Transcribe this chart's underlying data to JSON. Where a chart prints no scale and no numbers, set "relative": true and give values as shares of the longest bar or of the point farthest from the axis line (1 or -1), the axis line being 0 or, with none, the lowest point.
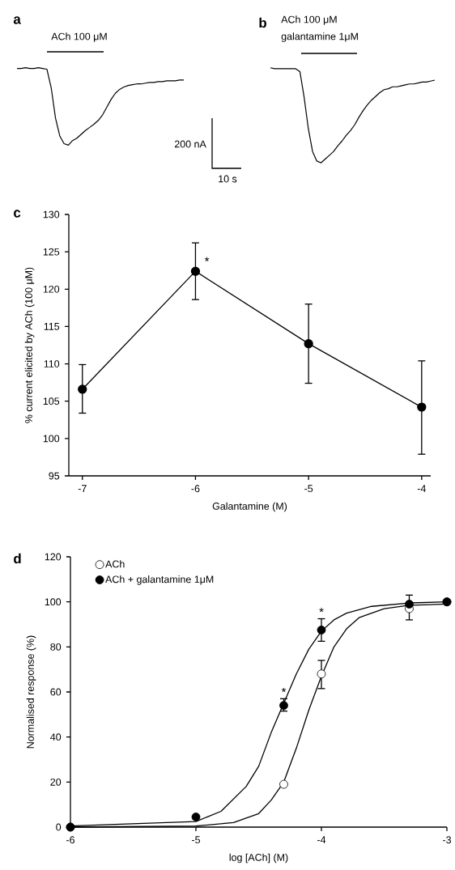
{
  "chart_data": [
    {
      "type": "line",
      "title": "a",
      "relative": true,
      "categories": [
        null,
        null,
        null,
        null,
        null,
        null,
        null,
        null,
        null,
        null,
        null,
        null,
        null,
        null,
        null,
        null,
        null,
        null,
        null,
        null,
        null,
        null,
        null,
        null,
        null,
        null,
        null,
        null,
        null,
        null,
        null,
        null,
        null,
        null,
        null,
        null,
        null,
        null,
        null,
        null
      ],
      "series": [
        {
          "color": "#000000",
          "values": [
            0.99,
            0.99,
            1.0,
            0.99,
            0.99,
            1.0,
            0.99,
            0.98,
            0.74,
            0.35,
            0.12,
            0.02,
            0.0,
            0.06,
            0.09,
            0.14,
            0.19,
            0.23,
            0.27,
            0.32,
            0.39,
            0.49,
            0.59,
            0.67,
            0.72,
            0.75,
            0.77,
            0.78,
            0.79,
            0.79,
            0.8,
            0.81,
            0.81,
            0.82,
            0.82,
            0.83,
            0.83,
            0.83,
            0.84,
            0.84
          ]
        }
      ],
      "annotations": [
        "ACh 100 μM",
        "200 nA",
        "10 s"
      ]
    },
    {
      "type": "line",
      "title": "b",
      "relative": true,
      "categories": [
        null,
        null,
        null,
        null,
        null,
        null,
        null,
        null,
        null,
        null,
        null,
        null,
        null,
        null,
        null,
        null,
        null,
        null,
        null,
        null,
        null,
        null,
        null,
        null,
        null,
        null,
        null,
        null,
        null,
        null,
        null,
        null,
        null,
        null,
        null,
        null,
        null,
        null,
        null,
        null
      ],
      "series": [
        {
          "color": "#000000",
          "values": [
            1.0,
            0.99,
            0.99,
            0.99,
            0.99,
            0.99,
            0.99,
            0.96,
            0.69,
            0.36,
            0.12,
            0.02,
            0.0,
            0.04,
            0.08,
            0.12,
            0.18,
            0.23,
            0.29,
            0.34,
            0.4,
            0.48,
            0.55,
            0.61,
            0.66,
            0.7,
            0.74,
            0.77,
            0.78,
            0.8,
            0.8,
            0.81,
            0.82,
            0.83,
            0.83,
            0.84,
            0.85,
            0.85,
            0.86,
            0.87
          ]
        }
      ],
      "annotations": [
        "ACh 100 μM",
        "galantamine 1μM"
      ]
    },
    {
      "type": "line",
      "title": "c",
      "xlabel": "Galantamine (M)",
      "ylabel": "% current elicited by ACh (100 μM)",
      "xlim": [
        -7.12,
        -3.92
      ],
      "xticks": [
        -7,
        -6,
        -5,
        -4
      ],
      "ylim": [
        95,
        130
      ],
      "yticks": [
        95,
        100,
        105,
        110,
        115,
        120,
        125,
        130
      ],
      "marker": "circle",
      "series": [
        {
          "color": "#000000",
          "x": [
            -7,
            -6,
            -5,
            -4
          ],
          "values": [
            106.6,
            122.4,
            112.7,
            104.2
          ],
          "errors": [
            [
              103.4,
              109.9
            ],
            [
              118.6,
              126.2
            ],
            [
              107.4,
              118.0
            ],
            [
              97.9,
              110.4
            ]
          ]
        }
      ],
      "annotations": [
        {
          "text": "*",
          "x": -6,
          "y": 122.4
        }
      ]
    },
    {
      "type": "scatter",
      "title": "d",
      "xlabel": "log [ACh] (M)",
      "ylabel": "Normalised response (%)",
      "xlim": [
        -6,
        -3
      ],
      "xticks": [
        -6,
        -5,
        -4,
        -3
      ],
      "ylim": [
        0,
        120
      ],
      "yticks": [
        0,
        20,
        40,
        60,
        80,
        100,
        120
      ],
      "legend": "top left",
      "marker": "circle",
      "series": [
        {
          "type": "line",
          "marker": "none",
          "color": "#000000",
          "x": [
            -6,
            -5,
            -4.7,
            -4.5,
            -4.4,
            -4.3,
            -4.2,
            -4.1,
            -4.0,
            -3.9,
            -3.8,
            -3.7,
            -3.5,
            -3.3,
            -3
          ],
          "values": [
            0,
            0.5,
            2,
            6,
            12,
            20,
            35,
            52,
            67,
            80,
            88,
            93,
            97,
            98.5,
            99
          ]
        },
        {
          "type": "line",
          "marker": "none",
          "color": "#000000",
          "x": [
            -6,
            -5,
            -4.8,
            -4.6,
            -4.5,
            -4.4,
            -4.3,
            -4.2,
            -4.1,
            -4.0,
            -3.9,
            -3.8,
            -3.6,
            -3.3,
            -3
          ],
          "values": [
            0.5,
            2.5,
            7,
            18,
            27,
            42,
            55,
            68,
            79,
            87,
            92,
            95,
            98,
            99.5,
            100
          ]
        },
        {
          "name": "ACh",
          "color": "#ffffff",
          "x": [
            -6,
            -4.3,
            -4,
            -3.3,
            -3
          ],
          "values": [
            0,
            19,
            68,
            97,
            100
          ],
          "errors": [
            null,
            null,
            [
              61.5,
              74
            ],
            null,
            null
          ]
        },
        {
          "name": "ACh + galantamine 1μM",
          "color": "#000000",
          "x": [
            -6,
            -5,
            -4.3,
            -4,
            -3.3,
            -3
          ],
          "values": [
            0,
            4.5,
            54,
            87.5,
            99,
            100
          ],
          "errors": [
            null,
            null,
            [
              51.5,
              57
            ],
            [
              82.5,
              92.5
            ],
            [
              92,
              103
            ],
            null
          ]
        }
      ],
      "annotations": [
        {
          "text": "*",
          "x": -4.3,
          "y": 57
        },
        {
          "text": "*",
          "x": -4,
          "y": 92.5
        }
      ]
    }
  ]
}
